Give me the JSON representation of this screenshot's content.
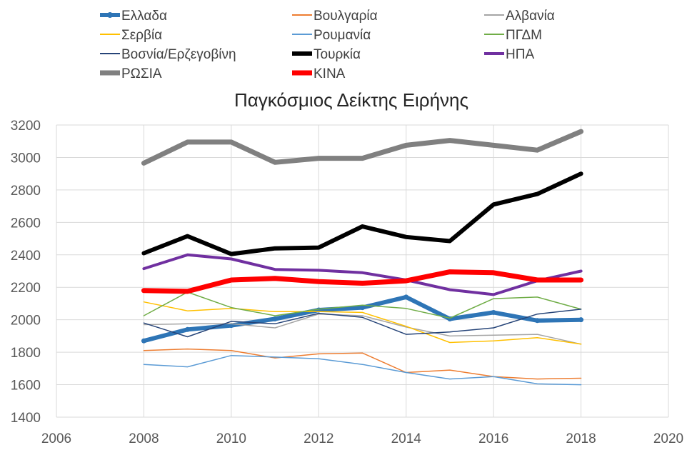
{
  "chart_data": {
    "type": "line",
    "title": "Παγκόσμιος Δείκτης Ειρήνης",
    "xlabel": "",
    "ylabel": "",
    "xlim": [
      2006,
      2020
    ],
    "ylim": [
      1400,
      3200
    ],
    "xticks": [
      2006,
      2008,
      2010,
      2012,
      2014,
      2016,
      2018,
      2020
    ],
    "yticks": [
      1400,
      1600,
      1800,
      2000,
      2200,
      2400,
      2600,
      2800,
      3000,
      3200
    ],
    "grid": true,
    "legend_position": "top",
    "x": [
      2008,
      2009,
      2010,
      2011,
      2012,
      2013,
      2014,
      2015,
      2016,
      2017,
      2018
    ],
    "series": [
      {
        "name": "Ελλαδα",
        "color": "#2e75b6",
        "width": 6,
        "marker": true,
        "values": [
          1870,
          1940,
          1965,
          2005,
          2060,
          2075,
          2140,
          2005,
          2045,
          1995,
          2000
        ]
      },
      {
        "name": "Βουλγαρία",
        "color": "#ed7d31",
        "width": 1.5,
        "values": [
          1810,
          1820,
          1810,
          1765,
          1790,
          1795,
          1675,
          1690,
          1650,
          1635,
          1640
        ]
      },
      {
        "name": "Αλβανία",
        "color": "#a5a5a5",
        "width": 1.5,
        "values": [
          1970,
          1975,
          1975,
          1950,
          2035,
          2025,
          1955,
          1900,
          1905,
          1910,
          1850
        ]
      },
      {
        "name": "Σερβία",
        "color": "#ffc000",
        "width": 1.5,
        "values": [
          2110,
          2055,
          2070,
          2050,
          2050,
          2045,
          1960,
          1860,
          1870,
          1890,
          1850
        ]
      },
      {
        "name": "Ρουμανία",
        "color": "#5b9bd5",
        "width": 1.5,
        "values": [
          1725,
          1710,
          1780,
          1770,
          1760,
          1725,
          1675,
          1635,
          1650,
          1605,
          1600
        ]
      },
      {
        "name": "ΠΓΔΜ",
        "color": "#70ad47",
        "width": 1.5,
        "values": [
          2025,
          2170,
          2075,
          2025,
          2065,
          2090,
          2070,
          2010,
          2130,
          2140,
          2065
        ]
      },
      {
        "name": "Βοσνία/Ερζεγοβίνη",
        "color": "#264478",
        "width": 1.5,
        "values": [
          1980,
          1895,
          1990,
          1975,
          2040,
          2015,
          1910,
          1925,
          1950,
          2035,
          2065
        ]
      },
      {
        "name": "Τουρκία",
        "color": "#000000",
        "width": 6,
        "values": [
          2410,
          2515,
          2405,
          2440,
          2445,
          2575,
          2510,
          2485,
          2710,
          2775,
          2900
        ]
      },
      {
        "name": "ΗΠΑ",
        "color": "#7030a0",
        "width": 4,
        "values": [
          2315,
          2400,
          2375,
          2310,
          2305,
          2290,
          2245,
          2185,
          2155,
          2240,
          2300
        ]
      },
      {
        "name": "ΡΩΣΙΑ",
        "color": "#808080",
        "width": 7,
        "values": [
          2965,
          3095,
          3095,
          2970,
          2995,
          2995,
          3075,
          3105,
          3075,
          3045,
          3160
        ]
      },
      {
        "name": "ΚΙΝΑ",
        "color": "#ff0000",
        "width": 7,
        "values": [
          2180,
          2175,
          2245,
          2255,
          2235,
          2225,
          2240,
          2295,
          2290,
          2245,
          2245
        ]
      }
    ]
  }
}
